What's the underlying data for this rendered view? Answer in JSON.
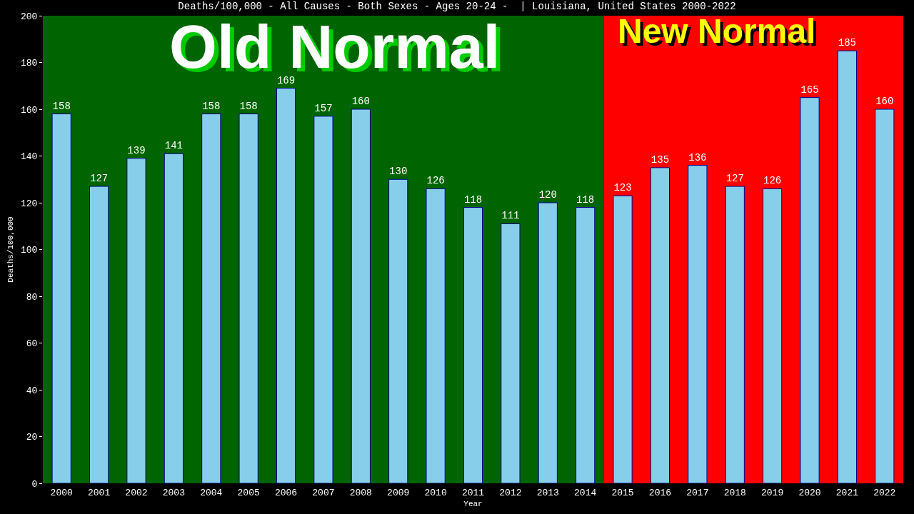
{
  "chart_data": {
    "type": "bar",
    "title": "Deaths/100,000 - All Causes - Both Sexes - Ages 20-24 -  | Louisiana, United States 2000-2022",
    "xlabel": "Year",
    "ylabel": "Deaths/100,000",
    "categories": [
      "2000",
      "2001",
      "2002",
      "2003",
      "2004",
      "2005",
      "2006",
      "2007",
      "2008",
      "2009",
      "2010",
      "2011",
      "2012",
      "2013",
      "2014",
      "2015",
      "2016",
      "2017",
      "2018",
      "2019",
      "2020",
      "2021",
      "2022"
    ],
    "values": [
      158,
      127,
      139,
      141,
      158,
      158,
      169,
      157,
      160,
      130,
      126,
      118,
      111,
      120,
      118,
      123,
      135,
      136,
      127,
      126,
      165,
      185,
      160
    ],
    "color": "#87ceeb",
    "data_labels": true,
    "ylim": [
      0,
      200
    ],
    "yticks": [
      0,
      20,
      40,
      60,
      80,
      100,
      120,
      140,
      160,
      180,
      200
    ],
    "grid": false,
    "bands": [
      {
        "axis": "x",
        "from": "2000",
        "to": "2014",
        "label": "Old Normal",
        "color": "#006400"
      },
      {
        "axis": "x",
        "from": "2015",
        "to": "2022",
        "label": "New Normal",
        "color": "#ff0000"
      }
    ]
  }
}
